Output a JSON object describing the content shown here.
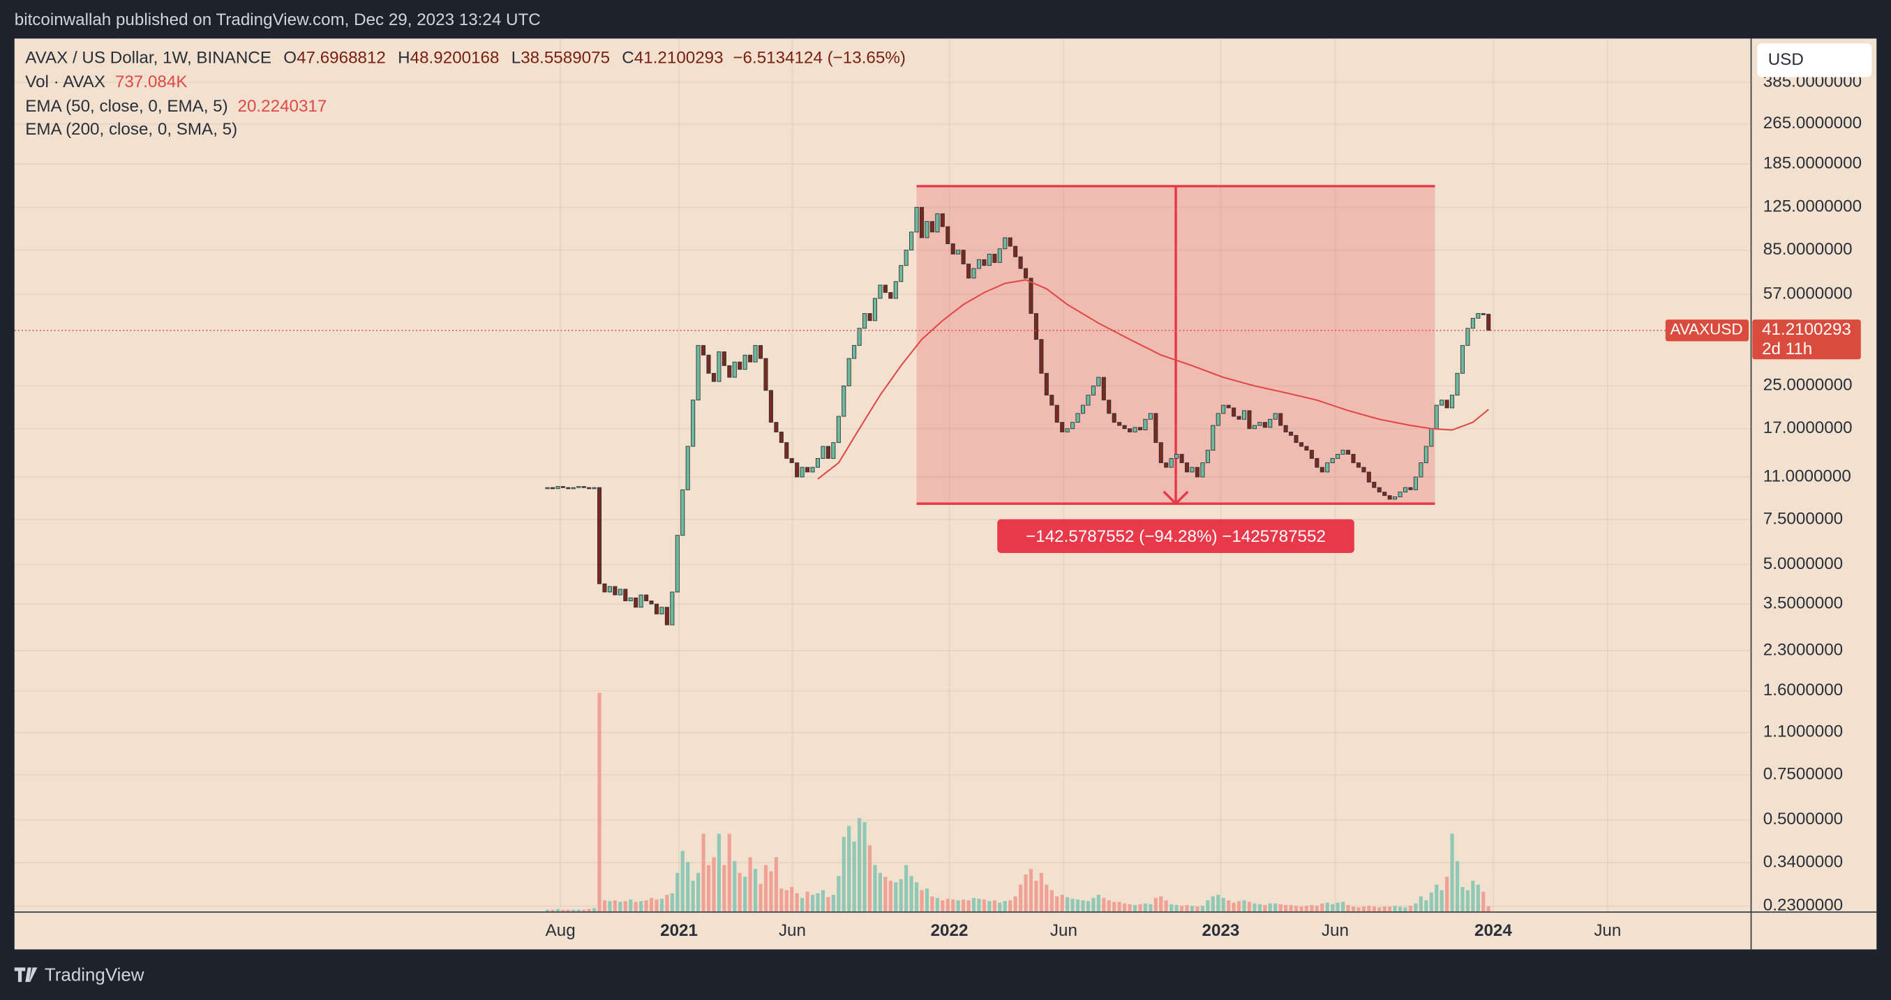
{
  "header": {
    "publisher": "bitcoinwallah published on TradingView.com, Dec 29, 2023 13:24 UTC"
  },
  "footer": {
    "brand": "TradingView"
  },
  "chart_data": {
    "type": "candlestick",
    "log_scale": true,
    "grid": true,
    "currency_button": "USD",
    "legend": {
      "symbol": "AVAX / US Dollar, 1W, BINANCE",
      "ohlc": [
        {
          "key": "O",
          "value": 47.6968812
        },
        {
          "key": "H",
          "value": 48.9200168
        },
        {
          "key": "L",
          "value": 38.5589075
        },
        {
          "key": "C",
          "value": 41.2100293
        }
      ],
      "change": "−6.5134124 (−13.65%)",
      "volume_name": "Vol · AVAX",
      "volume_value": "737.084K",
      "ema50_name": "EMA (50, close, 0, EMA, 5)",
      "ema50_value": 20.2240317,
      "ema200_name": "EMA (200, close, 0, SMA, 5)"
    },
    "price_label": {
      "symbol": "AVAXUSD",
      "value": 41.2100293,
      "countdown": "2d 11h"
    },
    "up_color": "#6dbb9c",
    "down_color": "#7a2a1c",
    "volume_up_color": "#8fc9b5",
    "volume_down_color": "#f0a196",
    "close": [
      10.0,
      9.9,
      10.1,
      10.0,
      9.9,
      10.0,
      10.1,
      10.0,
      9.9,
      10.0,
      4.2,
      3.9,
      4.1,
      3.8,
      4.0,
      3.6,
      3.7,
      3.4,
      3.8,
      3.6,
      3.5,
      3.2,
      3.4,
      2.9,
      3.9,
      6.5,
      9.8,
      14.5,
      22.0,
      36.0,
      33.0,
      28.0,
      26.0,
      34.0,
      30.0,
      27.0,
      31.0,
      29.0,
      33.0,
      31.0,
      36.0,
      32.0,
      24.0,
      18.0,
      16.5,
      15.0,
      13.0,
      12.5,
      11.0,
      12.0,
      11.5,
      12.0,
      13.0,
      14.5,
      13.0,
      15.0,
      19.0,
      25.0,
      32.0,
      36.0,
      42.0,
      48.0,
      45.0,
      55.0,
      62.0,
      58.0,
      55.0,
      64.0,
      74.0,
      85.0,
      100.0,
      125.0,
      95.0,
      110.0,
      100.0,
      118.0,
      105.0,
      90.0,
      82.0,
      85.0,
      75.0,
      66.0,
      72.0,
      78.0,
      74.0,
      82.0,
      76.0,
      86.0,
      95.0,
      88.0,
      80.0,
      72.0,
      66.0,
      48.0,
      38.0,
      28.0,
      23.0,
      21.0,
      18.0,
      16.5,
      17.0,
      18.0,
      19.5,
      21.0,
      23.0,
      25.0,
      27.0,
      22.0,
      19.5,
      18.0,
      17.5,
      17.0,
      16.5,
      17.2,
      16.8,
      18.5,
      19.5,
      15.0,
      12.5,
      12.0,
      13.0,
      13.5,
      12.5,
      11.5,
      12.0,
      11.0,
      12.5,
      14.0,
      17.5,
      19.5,
      21.0,
      20.5,
      19.0,
      18.5,
      20.0,
      17.0,
      17.5,
      18.0,
      17.2,
      18.5,
      19.5,
      17.5,
      16.5,
      16.0,
      15.0,
      14.5,
      14.0,
      13.0,
      12.0,
      11.5,
      12.5,
      13.0,
      13.5,
      14.0,
      13.5,
      12.5,
      12.0,
      11.5,
      10.5,
      10.0,
      9.6,
      9.3,
      9.0,
      9.2,
      9.6,
      10.0,
      9.8,
      11.0,
      12.5,
      14.5,
      17.0,
      21.0,
      22.0,
      20.5,
      23.0,
      28.0,
      36.0,
      42.0,
      46.0,
      48.0,
      47.6968812,
      41.2100293
    ],
    "volume": [
      300,
      300,
      400,
      300,
      300,
      300,
      300,
      300,
      400,
      500,
      28000,
      1500,
      1400,
      1500,
      1300,
      1400,
      1600,
      1300,
      1400,
      1500,
      1800,
      1600,
      1700,
      2200,
      2400,
      5000,
      7800,
      6400,
      4000,
      5000,
      10000,
      6000,
      7000,
      10000,
      6000,
      10000,
      6500,
      5000,
      4500,
      7000,
      5500,
      3600,
      6000,
      5200,
      7000,
      3000,
      2800,
      3200,
      2400,
      1800,
      2600,
      2200,
      2400,
      2800,
      1900,
      2200,
      4600,
      9600,
      11000,
      9000,
      12000,
      11500,
      8500,
      6000,
      5000,
      4500,
      4000,
      3800,
      4200,
      6000,
      4600,
      3800,
      2800,
      3000,
      2000,
      1800,
      1500,
      1700,
      1600,
      1500,
      1600,
      1500,
      1800,
      1700,
      1600,
      1400,
      1500,
      1200,
      1400,
      1500,
      2000,
      3500,
      4800,
      5500,
      4000,
      5000,
      3500,
      2800,
      2000,
      2200,
      1900,
      1700,
      1600,
      1500,
      1400,
      1800,
      2200,
      1800,
      1500,
      1300,
      1300,
      1100,
      1000,
      900,
      1000,
      1100,
      1000,
      1800,
      2000,
      1500,
      1000,
      900,
      800,
      900,
      800,
      700,
      800,
      1500,
      2000,
      2200,
      1800,
      1500,
      1200,
      1400,
      1500,
      1300,
      1100,
      1000,
      900,
      1100,
      1100,
      1000,
      900,
      900,
      800,
      700,
      800,
      900,
      800,
      1100,
      1200,
      1000,
      1200,
      1300,
      900,
      700,
      600,
      700,
      800,
      700,
      600,
      700,
      700,
      800,
      700,
      600,
      800,
      1100,
      2000,
      1500,
      2500,
      3500,
      2800,
      4500,
      10000,
      6500,
      3200,
      2800,
      4000,
      3500,
      2600,
      737.084
    ],
    "volume_lim": [
      0,
      40000
    ],
    "ema": {
      "color": "#e04848",
      "x": [
        52,
        56,
        60,
        64,
        68,
        72,
        76,
        80,
        84,
        88,
        92,
        96,
        100,
        106,
        112,
        118,
        124,
        130,
        136,
        142,
        148,
        154,
        160,
        166,
        170,
        174,
        178,
        181
      ],
      "values": [
        10.8,
        12.5,
        17,
        23,
        30,
        38,
        45,
        52,
        58,
        63,
        65,
        60,
        52,
        44,
        38,
        33,
        30,
        27,
        25,
        23.5,
        22,
        20,
        18.5,
        17.5,
        17,
        16.8,
        18,
        20.2240317
      ]
    },
    "measure": {
      "from": 71,
      "to": 170.7,
      "top": 151.23,
      "bottom": 8.65,
      "label": "−142.5787552 (−94.28%) −1425787552",
      "color": "#e8394a"
    },
    "xlim": [
      -102.5,
      231.5
    ],
    "xticks": [
      {
        "value": 2.5,
        "label": "Aug"
      },
      {
        "value": 25.3,
        "label": "2021"
      },
      {
        "value": 47.1,
        "label": "Jun"
      },
      {
        "value": 77.3,
        "label": "2022"
      },
      {
        "value": 99.3,
        "label": "Jun"
      },
      {
        "value": 129.5,
        "label": "2023"
      },
      {
        "value": 151.5,
        "label": "Jun"
      },
      {
        "value": 181.9,
        "label": "2024"
      },
      {
        "value": 203.9,
        "label": "Jun"
      }
    ],
    "ylim": [
      0.218,
      572
    ],
    "yticks": [
      {
        "value": 385,
        "label": "385.0000000"
      },
      {
        "value": 265,
        "label": "265.0000000"
      },
      {
        "value": 185,
        "label": "185.0000000"
      },
      {
        "value": 125,
        "label": "125.0000000"
      },
      {
        "value": 85,
        "label": "85.0000000"
      },
      {
        "value": 57,
        "label": "57.0000000"
      },
      {
        "value": 25,
        "label": "25.0000000"
      },
      {
        "value": 17,
        "label": "17.0000000"
      },
      {
        "value": 11,
        "label": "11.0000000"
      },
      {
        "value": 7.5,
        "label": "7.5000000"
      },
      {
        "value": 5,
        "label": "5.0000000"
      },
      {
        "value": 3.5,
        "label": "3.5000000"
      },
      {
        "value": 2.3,
        "label": "2.3000000"
      },
      {
        "value": 1.6,
        "label": "1.6000000"
      },
      {
        "value": 1.1,
        "label": "1.1000000"
      },
      {
        "value": 0.75,
        "label": "0.7500000"
      },
      {
        "value": 0.5,
        "label": "0.5000000"
      },
      {
        "value": 0.34,
        "label": "0.3400000"
      },
      {
        "value": 0.23,
        "label": "0.2300000"
      }
    ]
  }
}
